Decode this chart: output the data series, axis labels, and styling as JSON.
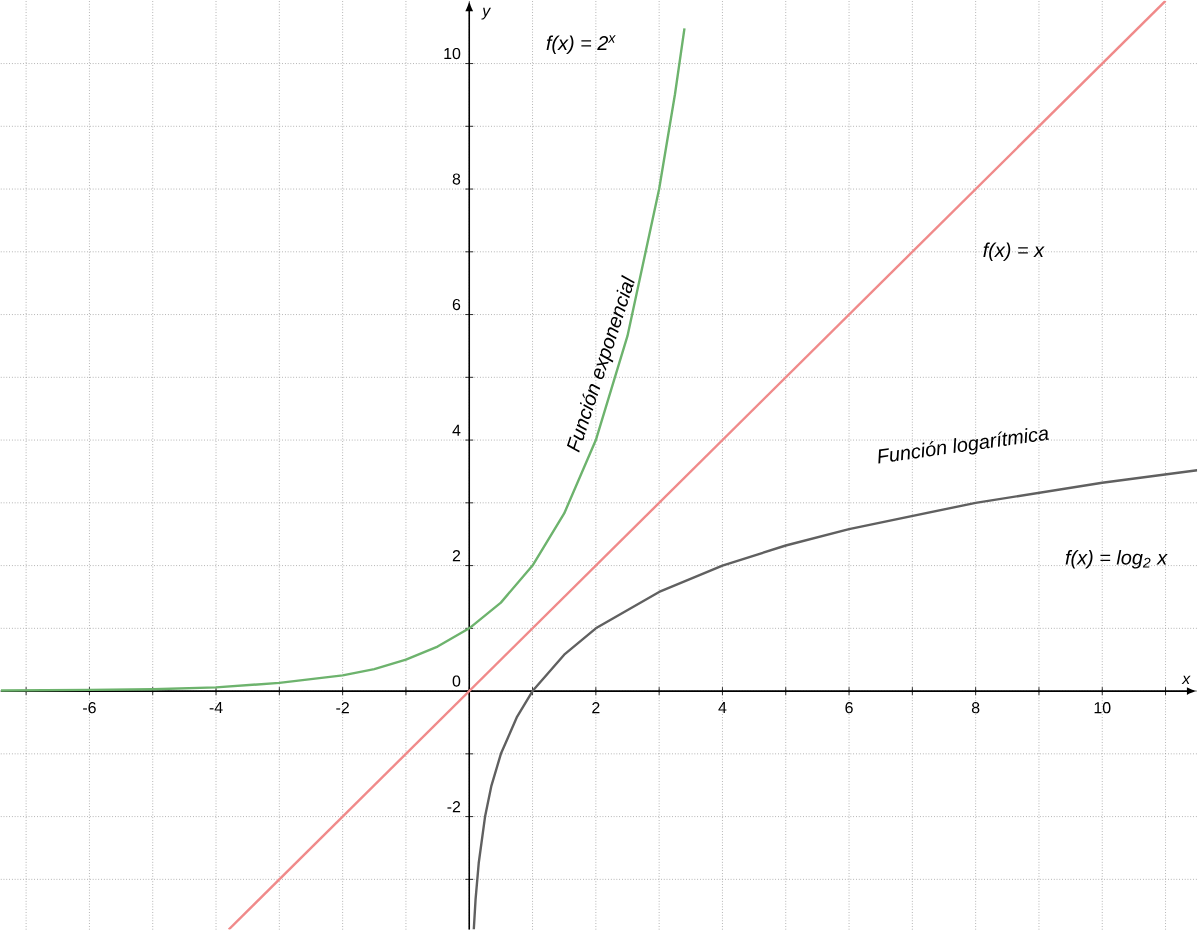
{
  "chart_data": {
    "type": "line",
    "xlabel": "x",
    "ylabel": "y",
    "xlim": [
      -7.4,
      11.5
    ],
    "ylim": [
      -3.8,
      11
    ],
    "grid": true,
    "marker": "none",
    "line_style": "solid",
    "xticks": [
      {
        "value": -7,
        "label": null
      },
      -6,
      {
        "value": -5,
        "label": null
      },
      -4,
      {
        "value": -3,
        "label": null
      },
      -2,
      {
        "value": -1,
        "label": null
      },
      {
        "value": 0,
        "label": null
      },
      {
        "value": 1,
        "label": null
      },
      2,
      {
        "value": 3,
        "label": null
      },
      4,
      {
        "value": 5,
        "label": null
      },
      6,
      {
        "value": 7,
        "label": null
      },
      8,
      {
        "value": 9,
        "label": null
      },
      10,
      {
        "value": 11,
        "label": null
      }
    ],
    "yticks": [
      {
        "value": -3,
        "label": null
      },
      -2,
      {
        "value": -1,
        "label": null
      },
      0,
      {
        "value": 1,
        "label": null
      },
      2,
      {
        "value": 3,
        "label": null
      },
      4,
      {
        "value": 5,
        "label": null
      },
      6,
      {
        "value": 7,
        "label": null
      },
      8,
      {
        "value": 9,
        "label": null
      },
      10
    ],
    "series": [
      {
        "color": "#6db36d",
        "x": [
          -7.4,
          -6,
          -5,
          -4,
          -3,
          -2,
          -1.5,
          -1,
          -0.5,
          0,
          0.5,
          1,
          1.5,
          2,
          2.5,
          3,
          3.25,
          3.4
        ],
        "values": [
          0.01,
          0.02,
          0.03,
          0.06,
          0.13,
          0.25,
          0.35,
          0.5,
          0.71,
          1,
          1.41,
          2,
          2.83,
          4,
          5.66,
          8,
          9.51,
          10.56
        ]
      },
      {
        "color": "#f08a8a",
        "x": [
          -3.8,
          11
        ],
        "values": [
          -3.8,
          11
        ]
      },
      {
        "color": "#606060",
        "x": [
          0.072,
          0.1,
          0.15,
          0.25,
          0.35,
          0.5,
          0.75,
          1,
          1.5,
          2,
          3,
          4,
          5,
          6,
          8,
          10,
          11.5
        ],
        "values": [
          -3.8,
          -3.32,
          -2.74,
          -2,
          -1.51,
          -1,
          -0.42,
          0,
          0.58,
          1,
          1.58,
          2,
          2.32,
          2.58,
          3,
          3.32,
          3.52
        ]
      }
    ],
    "annotations": [
      "f(x) = 2$^{x}$",
      "Función exponencial",
      "f(x) = x",
      "Función logarítmica",
      "f(x) = log$_{2}$ x"
    ]
  }
}
